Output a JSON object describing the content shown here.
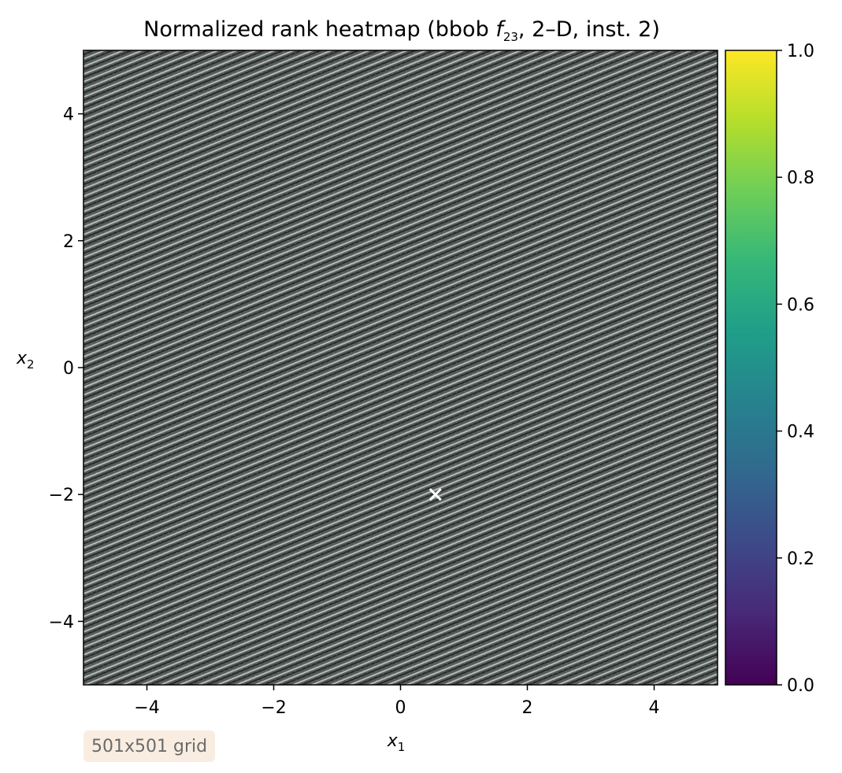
{
  "chart_data": {
    "type": "heatmap",
    "title": {
      "prefix": "Normalized rank heatmap (bbob ",
      "func_symbol": "f",
      "func_subscript": "23",
      "suffix": ", 2–D, inst. 2)"
    },
    "xlabel": {
      "symbol": "x",
      "subscript": "1"
    },
    "ylabel": {
      "symbol": "x",
      "subscript": "2"
    },
    "xlim": [
      -5,
      5
    ],
    "ylim": [
      -5,
      5
    ],
    "xticks": [
      -4,
      -2,
      0,
      2,
      4
    ],
    "xtick_labels": [
      "−4",
      "−2",
      "0",
      "2",
      "4"
    ],
    "yticks": [
      -4,
      -2,
      0,
      2,
      4
    ],
    "ytick_labels": [
      "−4",
      "−2",
      "0",
      "2",
      "4"
    ],
    "grid": false,
    "colormap": "viridis",
    "colorbar": {
      "range": [
        0,
        1
      ],
      "ticks": [
        0.0,
        0.2,
        0.4,
        0.6,
        0.8,
        1.0
      ],
      "tick_labels": [
        "0.0",
        "0.2",
        "0.4",
        "0.6",
        "0.8",
        "1.0"
      ]
    },
    "optimum_marker": {
      "x": 0.55,
      "y": -2.0,
      "symbol": "×",
      "color": "#ffffff"
    },
    "annotation": "501x501 grid"
  },
  "colors": {
    "heatmap_base": "#55595a",
    "heatmap_stripe_light": "#c4cbc6",
    "heatmap_stripe_dark": "#202624",
    "viridis": [
      "#440154",
      "#482878",
      "#3e4989",
      "#31688e",
      "#26828e",
      "#1f9e89",
      "#35b779",
      "#6ece58",
      "#b5de2b",
      "#fde725"
    ],
    "badge_bg": "#f9ede1",
    "badge_text": "#6b6b6b"
  }
}
